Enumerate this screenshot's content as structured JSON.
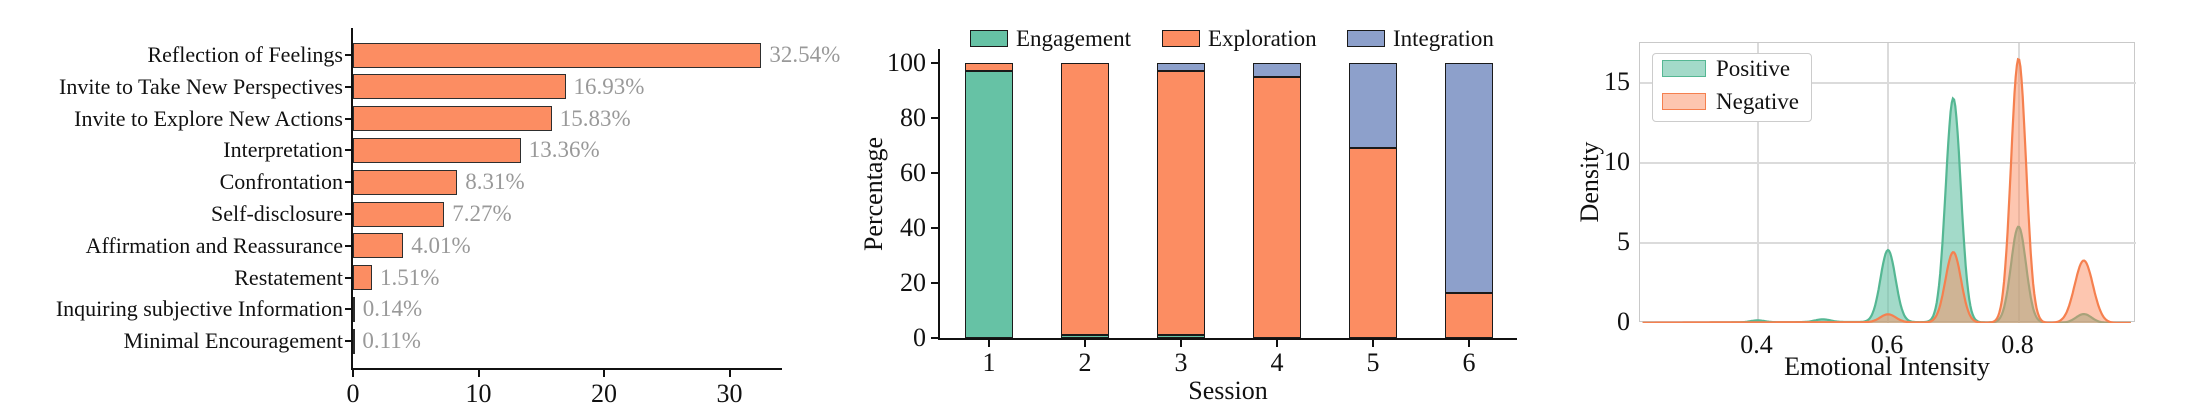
{
  "chart_data": [
    {
      "id": "counseling-skills-distribution",
      "type": "bar",
      "orientation": "horizontal",
      "categories": [
        "Reflection of Feelings",
        "Invite to Take New Perspectives",
        "Invite to Explore New Actions",
        "Interpretation",
        "Confrontation",
        "Self-disclosure",
        "Affirmation and Reassurance",
        "Restatement",
        "Inquiring subjective Information",
        "Minimal Encouragement"
      ],
      "values": [
        32.54,
        16.93,
        15.83,
        13.36,
        8.31,
        7.27,
        4.01,
        1.51,
        0.14,
        0.11
      ],
      "value_labels": [
        "32.54%",
        "16.93%",
        "15.83%",
        "13.36%",
        "8.31%",
        "7.27%",
        "4.01%",
        "1.51%",
        "0.14%",
        "0.11%"
      ],
      "xlabel": "",
      "ylabel": "",
      "xticks": [
        0,
        10,
        20,
        30
      ],
      "xlim": [
        0,
        34.2
      ],
      "bar_color": "#FC8D62",
      "bar_edge_color": "#2E2E2E",
      "value_label_color": "#999999",
      "grid": false,
      "legend_position": "none"
    },
    {
      "id": "session-stage-percentage",
      "type": "bar",
      "stacked": true,
      "categories": [
        "1",
        "2",
        "3",
        "4",
        "5",
        "6"
      ],
      "xlabel": "Session",
      "ylabel": "Percentage",
      "yticks": [
        0,
        20,
        40,
        60,
        80,
        100
      ],
      "ylim": [
        0,
        105
      ],
      "grid": false,
      "legend_position": "top",
      "bar_edge_color": "#1A1A1A",
      "series": [
        {
          "name": "Engagement",
          "color": "#66C2A5",
          "values": [
            97,
            1,
            1,
            0,
            0,
            0
          ]
        },
        {
          "name": "Exploration",
          "color": "#FC8D62",
          "values": [
            3,
            99,
            96,
            95,
            69,
            16.5
          ]
        },
        {
          "name": "Integration",
          "color": "#8DA0CB",
          "values": [
            0,
            0,
            3,
            5,
            31,
            83.5
          ]
        }
      ]
    },
    {
      "id": "emotional-intensity-density",
      "type": "area",
      "subtype": "kde",
      "xlabel": "Emotional Intensity",
      "ylabel": "Density",
      "xticks": [
        0.4,
        0.6,
        0.8
      ],
      "yticks": [
        0,
        5,
        10,
        15
      ],
      "xlim": [
        0.22,
        0.98
      ],
      "ylim": [
        0,
        17.5
      ],
      "grid": true,
      "legend_position": "upper left",
      "series": [
        {
          "name": "Positive",
          "color": "#66C2A5",
          "stroke": "#55B793",
          "fill_opacity": 0.6,
          "peaks": [
            {
              "x": 0.4,
              "height": 0.12,
              "sigma": 0.011
            },
            {
              "x": 0.5,
              "height": 0.17,
              "sigma": 0.012
            },
            {
              "x": 0.6,
              "height": 4.5,
              "sigma": 0.0115
            },
            {
              "x": 0.7,
              "height": 14.0,
              "sigma": 0.0115
            },
            {
              "x": 0.8,
              "height": 6.0,
              "sigma": 0.0115
            },
            {
              "x": 0.9,
              "height": 0.55,
              "sigma": 0.012
            },
            {
              "x": 0.55,
              "height": 0.06,
              "sigma": 0.18
            }
          ]
        },
        {
          "name": "Negative",
          "color": "#FC8D62",
          "stroke": "#F5804F",
          "fill_opacity": 0.5,
          "peaks": [
            {
              "x": 0.6,
              "height": 0.5,
              "sigma": 0.012
            },
            {
              "x": 0.7,
              "height": 4.4,
              "sigma": 0.012
            },
            {
              "x": 0.8,
              "height": 16.5,
              "sigma": 0.0115
            },
            {
              "x": 0.9,
              "height": 3.9,
              "sigma": 0.014
            },
            {
              "x": 0.5,
              "height": 0.05,
              "sigma": 0.2
            }
          ]
        }
      ]
    }
  ]
}
